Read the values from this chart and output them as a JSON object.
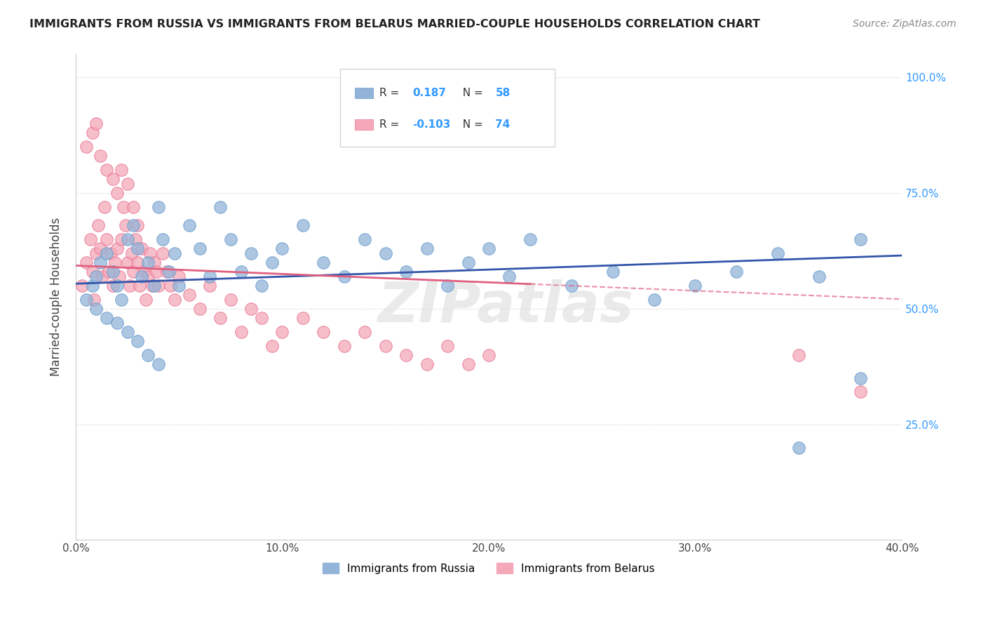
{
  "title": "IMMIGRANTS FROM RUSSIA VS IMMIGRANTS FROM BELARUS MARRIED-COUPLE HOUSEHOLDS CORRELATION CHART",
  "source": "Source: ZipAtlas.com",
  "ylabel": "Married-couple Households",
  "xlim": [
    0.0,
    0.4
  ],
  "ylim": [
    0.0,
    1.05
  ],
  "xticks": [
    0.0,
    0.1,
    0.2,
    0.3,
    0.4
  ],
  "xtick_labels": [
    "0.0%",
    "10.0%",
    "20.0%",
    "30.0%",
    "40.0%"
  ],
  "yticks": [
    0.25,
    0.5,
    0.75,
    1.0
  ],
  "ytick_labels": [
    "25.0%",
    "50.0%",
    "75.0%",
    "100.0%"
  ],
  "R_russia": 0.187,
  "N_russia": 58,
  "R_belarus": -0.103,
  "N_belarus": 74,
  "russia_color": "#92B4D8",
  "russia_edge_color": "#6699CC",
  "belarus_color": "#F4A8B8",
  "belarus_edge_color": "#E87090",
  "trend_russia_color": "#3355AA",
  "trend_belarus_color": "#E06080",
  "legend_label_russia": "Immigrants from Russia",
  "legend_label_belarus": "Immigrants from Belarus",
  "watermark": "ZIPatlas",
  "russia_x": [
    0.005,
    0.008,
    0.01,
    0.012,
    0.015,
    0.018,
    0.02,
    0.022,
    0.025,
    0.028,
    0.03,
    0.032,
    0.035,
    0.038,
    0.04,
    0.042,
    0.045,
    0.048,
    0.05,
    0.055,
    0.06,
    0.065,
    0.07,
    0.075,
    0.08,
    0.085,
    0.09,
    0.095,
    0.1,
    0.11,
    0.12,
    0.13,
    0.14,
    0.15,
    0.16,
    0.17,
    0.18,
    0.19,
    0.2,
    0.21,
    0.22,
    0.24,
    0.26,
    0.28,
    0.3,
    0.32,
    0.34,
    0.36,
    0.38,
    0.01,
    0.015,
    0.02,
    0.025,
    0.03,
    0.035,
    0.04,
    0.38,
    0.35
  ],
  "russia_y": [
    0.52,
    0.55,
    0.57,
    0.6,
    0.62,
    0.58,
    0.55,
    0.52,
    0.65,
    0.68,
    0.63,
    0.57,
    0.6,
    0.55,
    0.72,
    0.65,
    0.58,
    0.62,
    0.55,
    0.68,
    0.63,
    0.57,
    0.72,
    0.65,
    0.58,
    0.62,
    0.55,
    0.6,
    0.63,
    0.68,
    0.6,
    0.57,
    0.65,
    0.62,
    0.58,
    0.63,
    0.55,
    0.6,
    0.63,
    0.57,
    0.65,
    0.55,
    0.58,
    0.52,
    0.55,
    0.58,
    0.62,
    0.57,
    0.35,
    0.5,
    0.48,
    0.47,
    0.45,
    0.43,
    0.4,
    0.38,
    0.65,
    0.2
  ],
  "belarus_x": [
    0.003,
    0.005,
    0.007,
    0.008,
    0.009,
    0.01,
    0.011,
    0.012,
    0.013,
    0.014,
    0.015,
    0.016,
    0.017,
    0.018,
    0.019,
    0.02,
    0.021,
    0.022,
    0.023,
    0.024,
    0.025,
    0.026,
    0.027,
    0.028,
    0.029,
    0.03,
    0.031,
    0.032,
    0.033,
    0.034,
    0.035,
    0.036,
    0.037,
    0.038,
    0.039,
    0.04,
    0.042,
    0.044,
    0.046,
    0.048,
    0.05,
    0.055,
    0.06,
    0.065,
    0.07,
    0.075,
    0.08,
    0.085,
    0.09,
    0.095,
    0.1,
    0.11,
    0.12,
    0.13,
    0.14,
    0.15,
    0.16,
    0.17,
    0.18,
    0.19,
    0.2,
    0.35,
    0.38,
    0.005,
    0.008,
    0.01,
    0.012,
    0.015,
    0.018,
    0.02,
    0.022,
    0.025,
    0.028,
    0.03
  ],
  "belarus_y": [
    0.55,
    0.6,
    0.65,
    0.58,
    0.52,
    0.62,
    0.68,
    0.63,
    0.57,
    0.72,
    0.65,
    0.58,
    0.62,
    0.55,
    0.6,
    0.63,
    0.57,
    0.65,
    0.72,
    0.68,
    0.6,
    0.55,
    0.62,
    0.58,
    0.65,
    0.6,
    0.55,
    0.63,
    0.58,
    0.52,
    0.57,
    0.62,
    0.55,
    0.6,
    0.58,
    0.55,
    0.62,
    0.58,
    0.55,
    0.52,
    0.57,
    0.53,
    0.5,
    0.55,
    0.48,
    0.52,
    0.45,
    0.5,
    0.48,
    0.42,
    0.45,
    0.48,
    0.45,
    0.42,
    0.45,
    0.42,
    0.4,
    0.38,
    0.42,
    0.38,
    0.4,
    0.4,
    0.32,
    0.85,
    0.88,
    0.9,
    0.83,
    0.8,
    0.78,
    0.75,
    0.8,
    0.77,
    0.72,
    0.68
  ]
}
